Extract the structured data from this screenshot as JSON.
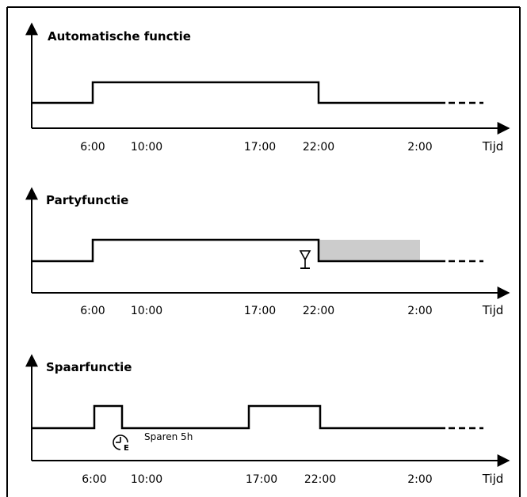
{
  "panels": [
    {
      "title": "Automatische functie",
      "tick_labels": [
        "6:00",
        "10:00",
        "17:00",
        "22:00",
        "2:00"
      ],
      "x_axis_label": "Tijd"
    },
    {
      "title": "Partyfunctie",
      "tick_labels": [
        "6:00",
        "10:00",
        "17:00",
        "22:00",
        "2:00"
      ],
      "x_axis_label": "Tijd",
      "highlight_color": "#cccccc",
      "icon": "glass-icon"
    },
    {
      "title": "Spaarfunctie",
      "tick_labels": [
        "6:00",
        "10:00",
        "17:00",
        "22:00",
        "2:00"
      ],
      "x_axis_label": "Tijd",
      "note": "Sparen 5h",
      "icon": "clock-e-icon"
    }
  ],
  "colors": {
    "line": "#000000",
    "highlight": "#cccccc",
    "border": "#000000"
  }
}
